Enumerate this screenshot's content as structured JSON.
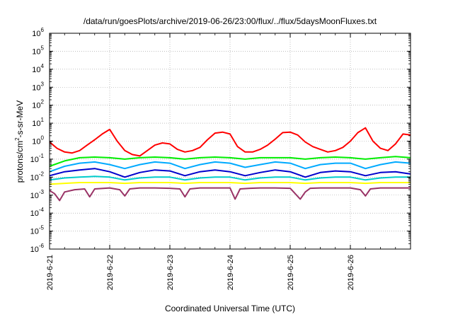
{
  "chart_data": {
    "type": "line",
    "title": "/data/run/goesPlots/archive/2019-06-26/23:00/flux/../flux/5daysMoonFluxes.txt",
    "xlabel": "Coordinated Universal Time (UTC)",
    "ylabel_parts": {
      "base": "protons/cm",
      "sup": "2",
      "rest": "-s-sr-MeV"
    },
    "y_scale": "log",
    "ylim": [
      1e-06,
      1000000.0
    ],
    "y_ticks": [
      {
        "value": 1e-06,
        "base": "10",
        "exp": "-6"
      },
      {
        "value": 1e-05,
        "base": "10",
        "exp": "-5"
      },
      {
        "value": 0.0001,
        "base": "10",
        "exp": "-4"
      },
      {
        "value": 0.001,
        "base": "10",
        "exp": "-3"
      },
      {
        "value": 0.01,
        "base": "10",
        "exp": "-2"
      },
      {
        "value": 0.1,
        "base": "10",
        "exp": "-1"
      },
      {
        "value": 1,
        "base": "10",
        "exp": "0"
      },
      {
        "value": 10.0,
        "base": "10",
        "exp": "1"
      },
      {
        "value": 100.0,
        "base": "10",
        "exp": "2"
      },
      {
        "value": 1000.0,
        "base": "10",
        "exp": "3"
      },
      {
        "value": 10000.0,
        "base": "10",
        "exp": "4"
      },
      {
        "value": 100000.0,
        "base": "10",
        "exp": "5"
      },
      {
        "value": 1000000.0,
        "base": "10",
        "exp": "6"
      }
    ],
    "x_range": [
      "2019-06-21T00:00",
      "2019-06-27T00:00"
    ],
    "x_ticks": [
      {
        "label": "2019-6-21",
        "date": "2019-06-21T00:00"
      },
      {
        "label": "2019-6-22",
        "date": "2019-06-22T00:00"
      },
      {
        "label": "2019-6-23",
        "date": "2019-06-23T00:00"
      },
      {
        "label": "2019-6-24",
        "date": "2019-06-24T00:00"
      },
      {
        "label": "2019-6-25",
        "date": "2019-06-25T00:00"
      },
      {
        "label": "2019-6-26",
        "date": "2019-06-26T00:00"
      }
    ],
    "grid": true,
    "series": [
      {
        "color": "#ff0000",
        "x": [
          "2019-06-21T00:00",
          "2019-06-21T03:00",
          "2019-06-21T06:00",
          "2019-06-21T09:00",
          "2019-06-21T12:00",
          "2019-06-21T15:00",
          "2019-06-21T18:00",
          "2019-06-21T21:00",
          "2019-06-22T00:00",
          "2019-06-22T03:00",
          "2019-06-22T06:00",
          "2019-06-22T09:00",
          "2019-06-22T12:00",
          "2019-06-22T15:00",
          "2019-06-22T18:00",
          "2019-06-22T21:00",
          "2019-06-23T00:00",
          "2019-06-23T03:00",
          "2019-06-23T06:00",
          "2019-06-23T09:00",
          "2019-06-23T12:00",
          "2019-06-23T15:00",
          "2019-06-23T18:00",
          "2019-06-23T21:00",
          "2019-06-24T00:00",
          "2019-06-24T03:00",
          "2019-06-24T06:00",
          "2019-06-24T09:00",
          "2019-06-24T12:00",
          "2019-06-24T15:00",
          "2019-06-24T18:00",
          "2019-06-24T21:00",
          "2019-06-25T00:00",
          "2019-06-25T03:00",
          "2019-06-25T06:00",
          "2019-06-25T09:00",
          "2019-06-25T12:00",
          "2019-06-25T15:00",
          "2019-06-25T18:00",
          "2019-06-25T21:00",
          "2019-06-26T00:00",
          "2019-06-26T03:00",
          "2019-06-26T06:00",
          "2019-06-26T09:00",
          "2019-06-26T12:00",
          "2019-06-26T15:00",
          "2019-06-26T18:00",
          "2019-06-26T21:00",
          "2019-06-27T00:00"
        ],
        "y": [
          0.9,
          0.4,
          0.25,
          0.22,
          0.3,
          0.6,
          1.2,
          2.5,
          4.5,
          1.0,
          0.3,
          0.18,
          0.15,
          0.3,
          0.6,
          0.8,
          0.7,
          0.35,
          0.25,
          0.3,
          0.45,
          1.2,
          2.8,
          3.2,
          2.5,
          0.5,
          0.25,
          0.25,
          0.35,
          0.6,
          1.3,
          3.0,
          3.2,
          2.2,
          0.9,
          0.5,
          0.35,
          0.25,
          0.3,
          0.45,
          1.0,
          3.0,
          5.5,
          1.0,
          0.4,
          0.3,
          0.7,
          2.5,
          2.2
        ]
      },
      {
        "color": "#00ee00",
        "x": [
          "2019-06-21T00:00",
          "2019-06-21T06:00",
          "2019-06-21T12:00",
          "2019-06-21T18:00",
          "2019-06-22T00:00",
          "2019-06-22T06:00",
          "2019-06-22T12:00",
          "2019-06-22T18:00",
          "2019-06-23T00:00",
          "2019-06-23T06:00",
          "2019-06-23T12:00",
          "2019-06-23T18:00",
          "2019-06-24T00:00",
          "2019-06-24T06:00",
          "2019-06-24T12:00",
          "2019-06-24T18:00",
          "2019-06-25T00:00",
          "2019-06-25T06:00",
          "2019-06-25T12:00",
          "2019-06-25T18:00",
          "2019-06-26T00:00",
          "2019-06-26T06:00",
          "2019-06-26T12:00",
          "2019-06-26T18:00",
          "2019-06-27T00:00"
        ],
        "y": [
          0.04,
          0.08,
          0.12,
          0.13,
          0.12,
          0.1,
          0.12,
          0.13,
          0.12,
          0.1,
          0.12,
          0.13,
          0.12,
          0.1,
          0.12,
          0.12,
          0.12,
          0.1,
          0.12,
          0.13,
          0.12,
          0.1,
          0.12,
          0.14,
          0.12
        ]
      },
      {
        "color": "#00aaff",
        "x": [
          "2019-06-21T00:00",
          "2019-06-21T06:00",
          "2019-06-21T12:00",
          "2019-06-21T18:00",
          "2019-06-22T00:00",
          "2019-06-22T06:00",
          "2019-06-22T12:00",
          "2019-06-22T18:00",
          "2019-06-23T00:00",
          "2019-06-23T06:00",
          "2019-06-23T12:00",
          "2019-06-23T18:00",
          "2019-06-24T00:00",
          "2019-06-24T06:00",
          "2019-06-24T12:00",
          "2019-06-24T18:00",
          "2019-06-25T00:00",
          "2019-06-25T06:00",
          "2019-06-25T12:00",
          "2019-06-25T18:00",
          "2019-06-26T00:00",
          "2019-06-26T06:00",
          "2019-06-26T12:00",
          "2019-06-26T18:00",
          "2019-06-27T00:00"
        ],
        "y": [
          0.02,
          0.04,
          0.06,
          0.07,
          0.05,
          0.03,
          0.05,
          0.07,
          0.06,
          0.03,
          0.05,
          0.07,
          0.06,
          0.035,
          0.05,
          0.07,
          0.06,
          0.03,
          0.05,
          0.06,
          0.06,
          0.03,
          0.05,
          0.07,
          0.06
        ]
      },
      {
        "color": "#0000cc",
        "x": [
          "2019-06-21T00:00",
          "2019-06-21T06:00",
          "2019-06-21T12:00",
          "2019-06-21T18:00",
          "2019-06-22T00:00",
          "2019-06-22T06:00",
          "2019-06-22T12:00",
          "2019-06-22T18:00",
          "2019-06-23T00:00",
          "2019-06-23T06:00",
          "2019-06-23T12:00",
          "2019-06-23T18:00",
          "2019-06-24T00:00",
          "2019-06-24T06:00",
          "2019-06-24T12:00",
          "2019-06-24T18:00",
          "2019-06-25T00:00",
          "2019-06-25T06:00",
          "2019-06-25T12:00",
          "2019-06-25T18:00",
          "2019-06-26T00:00",
          "2019-06-26T06:00",
          "2019-06-26T12:00",
          "2019-06-26T18:00",
          "2019-06-27T00:00"
        ],
        "y": [
          0.012,
          0.02,
          0.025,
          0.03,
          0.02,
          0.01,
          0.018,
          0.025,
          0.022,
          0.012,
          0.02,
          0.025,
          0.02,
          0.012,
          0.018,
          0.025,
          0.02,
          0.01,
          0.018,
          0.022,
          0.02,
          0.012,
          0.018,
          0.02,
          0.015
        ]
      },
      {
        "color": "#00cccc",
        "x": [
          "2019-06-21T00:00",
          "2019-06-21T06:00",
          "2019-06-21T12:00",
          "2019-06-21T18:00",
          "2019-06-22T00:00",
          "2019-06-22T06:00",
          "2019-06-22T12:00",
          "2019-06-22T18:00",
          "2019-06-23T00:00",
          "2019-06-23T06:00",
          "2019-06-23T12:00",
          "2019-06-23T18:00",
          "2019-06-24T00:00",
          "2019-06-24T06:00",
          "2019-06-24T12:00",
          "2019-06-24T18:00",
          "2019-06-25T00:00",
          "2019-06-25T06:00",
          "2019-06-25T12:00",
          "2019-06-25T18:00",
          "2019-06-26T00:00",
          "2019-06-26T06:00",
          "2019-06-26T12:00",
          "2019-06-26T18:00",
          "2019-06-27T00:00"
        ],
        "y": [
          0.007,
          0.009,
          0.01,
          0.011,
          0.01,
          0.007,
          0.009,
          0.01,
          0.01,
          0.007,
          0.009,
          0.01,
          0.01,
          0.007,
          0.009,
          0.01,
          0.01,
          0.007,
          0.009,
          0.01,
          0.01,
          0.007,
          0.009,
          0.01,
          0.01
        ]
      },
      {
        "color": "#ffff00",
        "x": [
          "2019-06-21T00:00",
          "2019-06-21T06:00",
          "2019-06-21T12:00",
          "2019-06-21T18:00",
          "2019-06-22T00:00",
          "2019-06-22T06:00",
          "2019-06-22T12:00",
          "2019-06-22T18:00",
          "2019-06-23T00:00",
          "2019-06-23T06:00",
          "2019-06-23T12:00",
          "2019-06-23T18:00",
          "2019-06-24T00:00",
          "2019-06-24T06:00",
          "2019-06-24T12:00",
          "2019-06-24T18:00",
          "2019-06-25T00:00",
          "2019-06-25T06:00",
          "2019-06-25T12:00",
          "2019-06-25T18:00",
          "2019-06-26T00:00",
          "2019-06-26T06:00",
          "2019-06-26T12:00",
          "2019-06-26T18:00",
          "2019-06-27T00:00"
        ],
        "y": [
          0.004,
          0.0045,
          0.005,
          0.005,
          0.005,
          0.0045,
          0.005,
          0.005,
          0.005,
          0.0045,
          0.005,
          0.005,
          0.005,
          0.0045,
          0.005,
          0.005,
          0.005,
          0.0045,
          0.005,
          0.005,
          0.005,
          0.0045,
          0.005,
          0.005,
          0.005
        ]
      },
      {
        "color": "#993366",
        "x": [
          "2019-06-21T00:00",
          "2019-06-21T02:00",
          "2019-06-21T04:00",
          "2019-06-21T06:00",
          "2019-06-21T10:00",
          "2019-06-21T14:00",
          "2019-06-21T16:00",
          "2019-06-21T18:00",
          "2019-06-22T00:00",
          "2019-06-22T04:00",
          "2019-06-22T06:00",
          "2019-06-22T08:00",
          "2019-06-22T12:00",
          "2019-06-22T18:00",
          "2019-06-23T00:00",
          "2019-06-23T04:00",
          "2019-06-23T06:00",
          "2019-06-23T08:00",
          "2019-06-23T12:00",
          "2019-06-23T18:00",
          "2019-06-24T00:00",
          "2019-06-24T02:00",
          "2019-06-24T04:00",
          "2019-06-24T08:00",
          "2019-06-24T12:00",
          "2019-06-24T18:00",
          "2019-06-25T00:00",
          "2019-06-25T04:00",
          "2019-06-25T06:00",
          "2019-06-25T08:00",
          "2019-06-25T12:00",
          "2019-06-25T18:00",
          "2019-06-26T00:00",
          "2019-06-26T04:00",
          "2019-06-26T06:00",
          "2019-06-26T08:00",
          "2019-06-26T12:00",
          "2019-06-26T18:00",
          "2019-06-27T00:00"
        ],
        "y": [
          0.0018,
          0.0012,
          0.0005,
          0.0015,
          0.002,
          0.0022,
          0.0008,
          0.0022,
          0.0025,
          0.002,
          0.0009,
          0.0022,
          0.0025,
          0.0025,
          0.0024,
          0.0022,
          0.0008,
          0.0022,
          0.0025,
          0.0025,
          0.0025,
          0.0006,
          0.0022,
          0.0024,
          0.0025,
          0.0025,
          0.0024,
          0.0006,
          0.0015,
          0.0024,
          0.0025,
          0.0025,
          0.0025,
          0.002,
          0.0009,
          0.0022,
          0.0025,
          0.0025,
          0.0025
        ]
      }
    ]
  }
}
